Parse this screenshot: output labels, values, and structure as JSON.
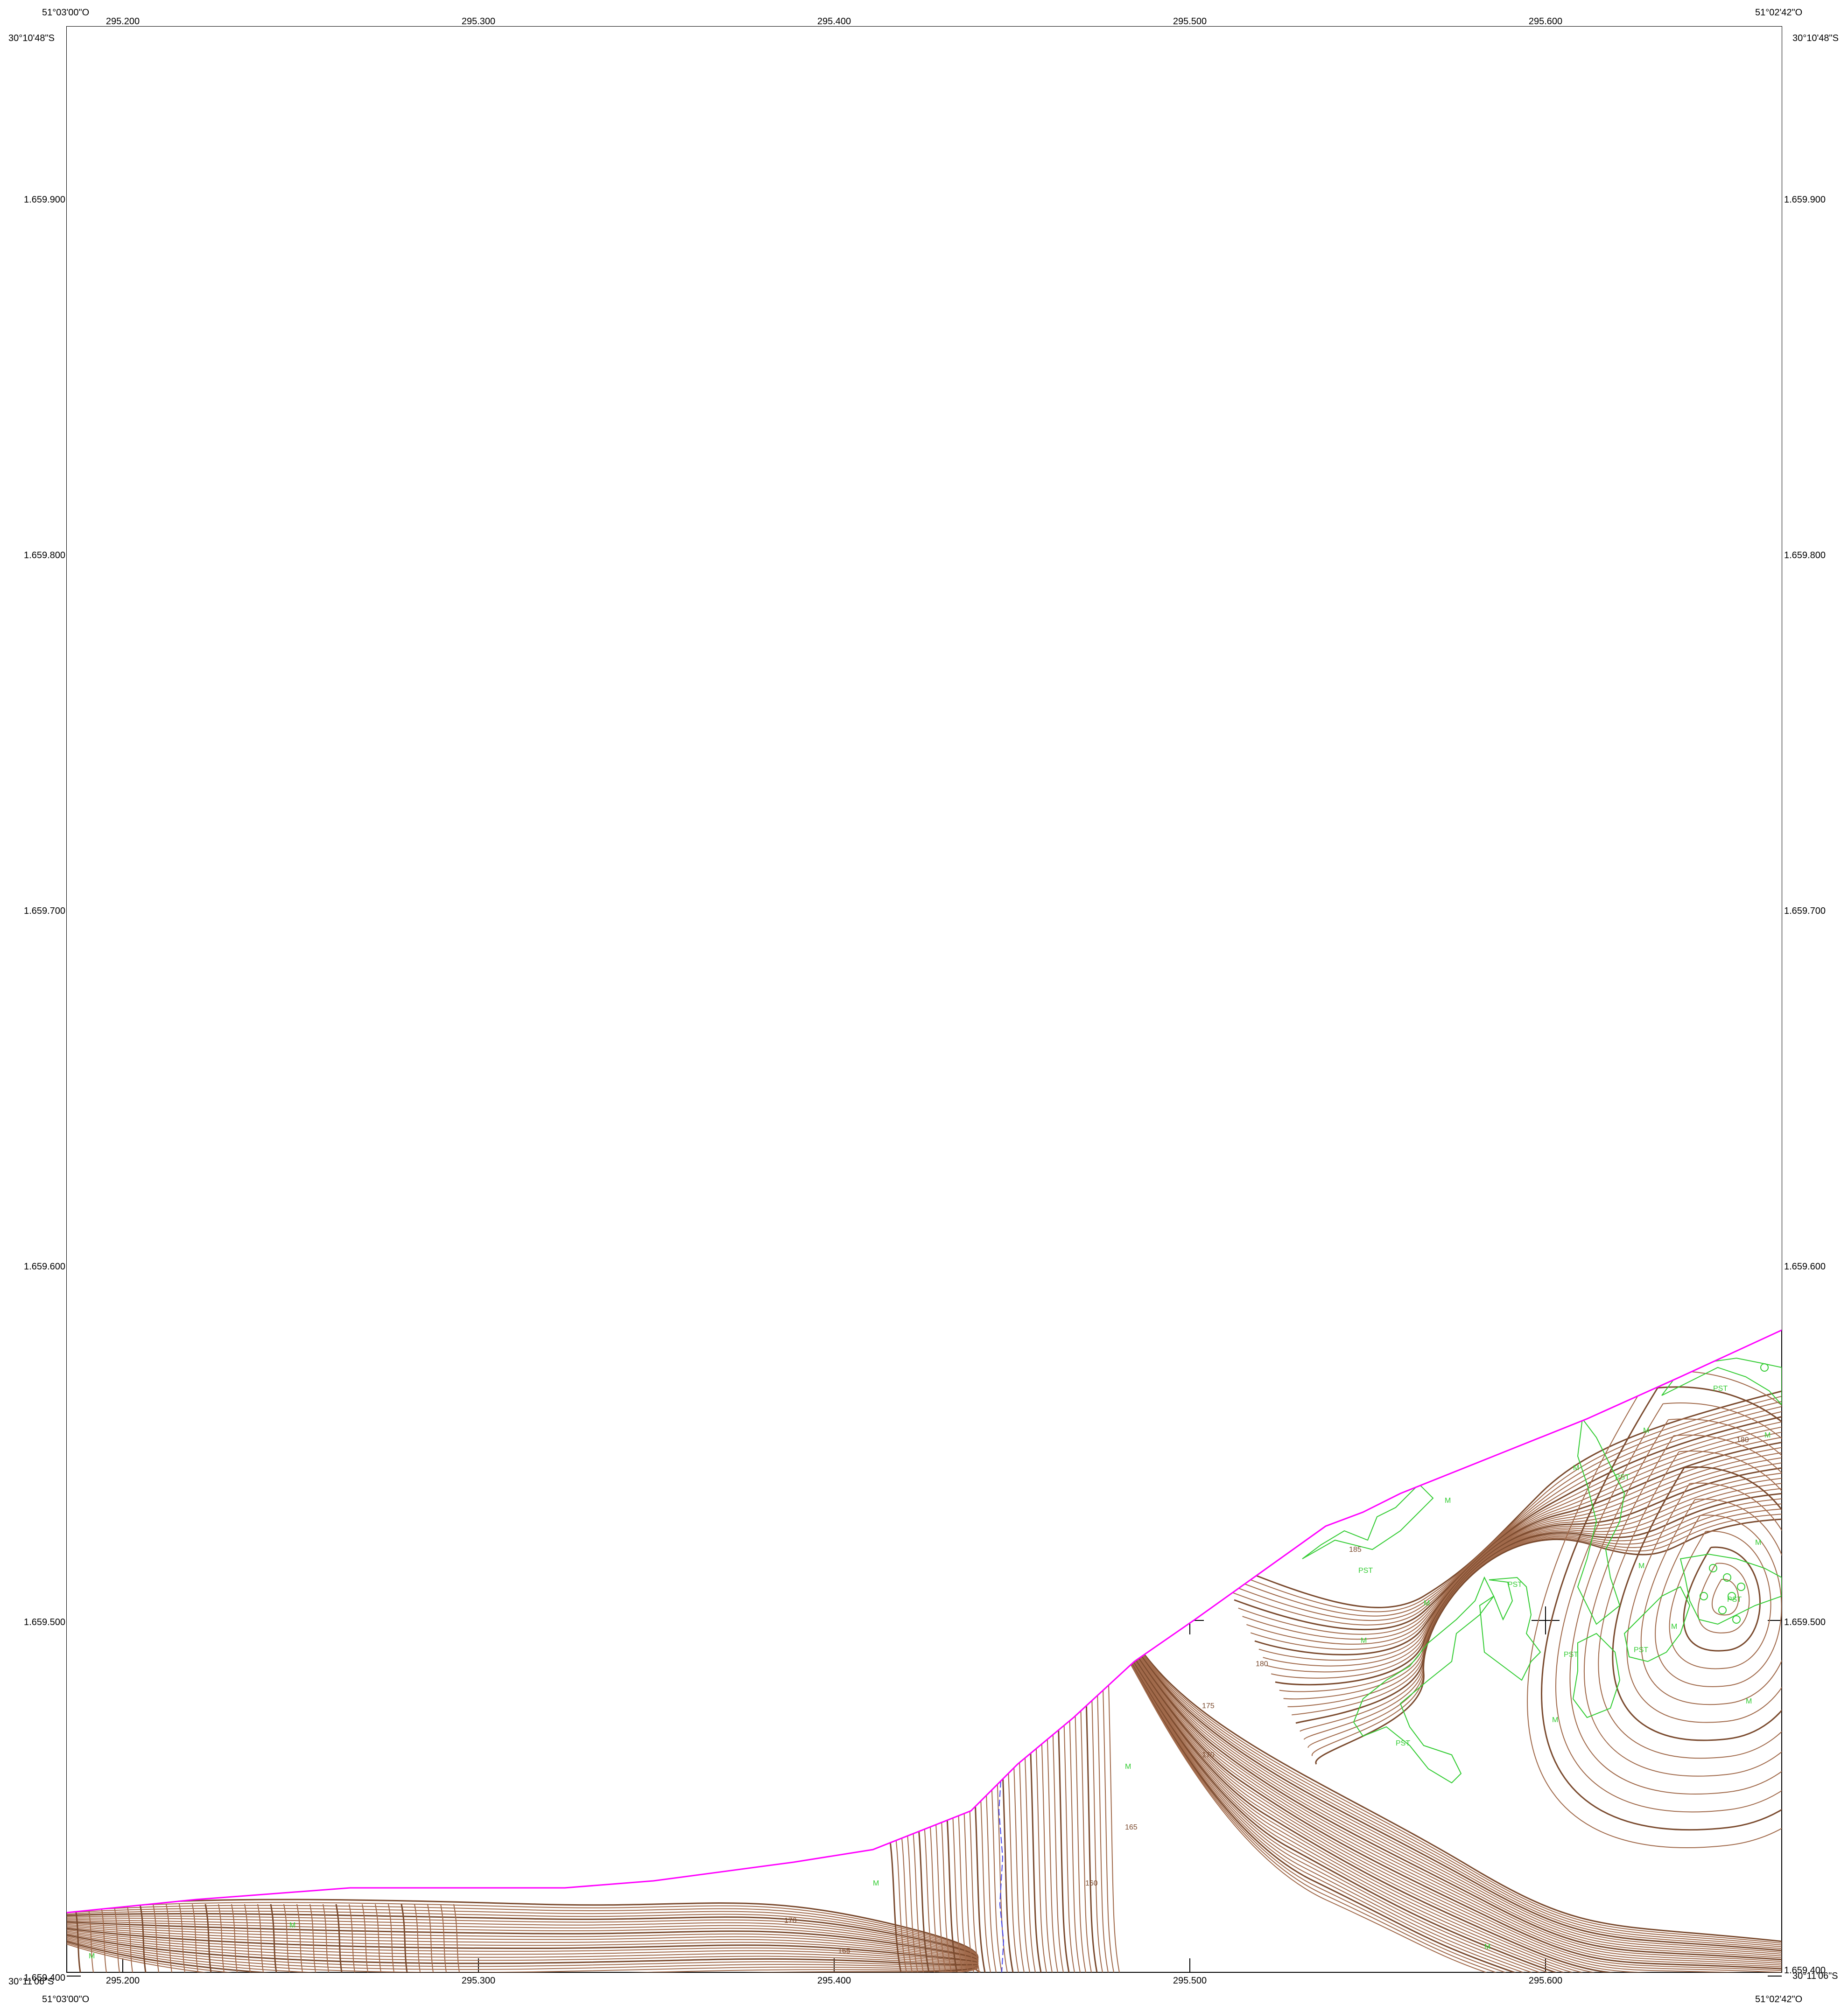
{
  "map": {
    "corners": {
      "top_left_lon": "51°03'00\"O",
      "top_right_lon": "51°02'42\"O",
      "bottom_left_lon": "51°03'00\"O",
      "bottom_right_lon": "51°02'42\"O",
      "top_left_lat": "30°10'48\"S",
      "top_right_lat": "30°10'48\"S",
      "bottom_left_lat": "30°11'06\"S",
      "bottom_right_lat": "30°11'06\"S"
    },
    "eastings": [
      "295.200",
      "295.300",
      "295.400",
      "295.500",
      "295.600"
    ],
    "northings": [
      "1.659.900",
      "1.659.800",
      "1.659.700",
      "1.659.600",
      "1.659.500",
      "1.659.400"
    ],
    "contour_labels": [
      "185",
      "180",
      "175",
      "170",
      "165",
      "160",
      "170",
      "165"
    ],
    "vegetation_labels": [
      "PST",
      "PST",
      "PST",
      "PST",
      "PST",
      "PST",
      "PST",
      "PST",
      "M",
      "M",
      "M",
      "M",
      "M",
      "M",
      "M",
      "M",
      "M",
      "M",
      "M",
      "M",
      "M",
      "M",
      "M",
      "M"
    ],
    "colors": {
      "frame": "#000000",
      "boundary": "#ff00ff",
      "contour": "#a0694a",
      "contour_index": "#7a4a2e",
      "vegetation": "#33cc33",
      "hydrography": "#4444ee"
    }
  }
}
